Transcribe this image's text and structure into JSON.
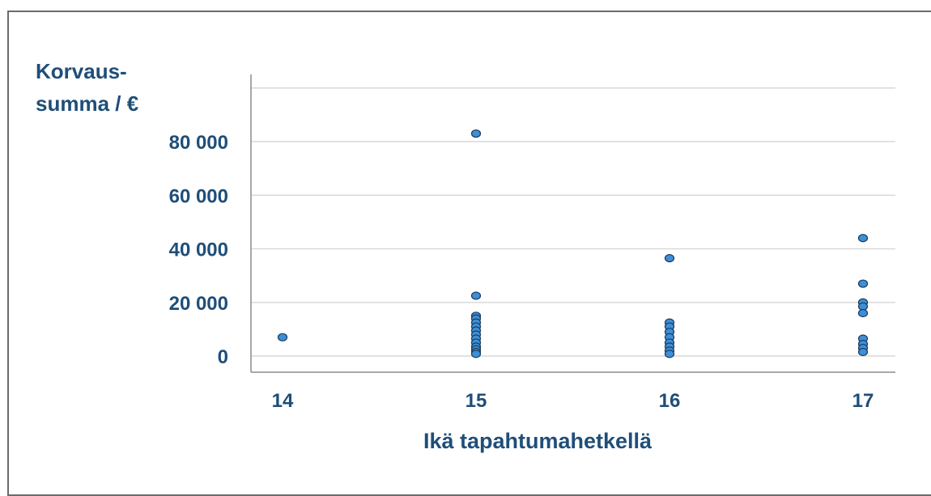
{
  "chart_data": {
    "type": "scatter",
    "title": "",
    "ylabel_lines": [
      "Korvaus-",
      "summa / €"
    ],
    "xlabel": "Ikä tapahtumahetkellä",
    "x_categories": [
      "14",
      "15",
      "16",
      "17"
    ],
    "ylim": [
      0,
      100000
    ],
    "yticks": [
      0,
      20000,
      40000,
      60000,
      80000
    ],
    "ytick_labels": [
      "0",
      "20 000",
      "40 000",
      "60 000",
      "80 000"
    ],
    "grid": true,
    "points": [
      {
        "x": 14,
        "y": 7000
      },
      {
        "x": 15,
        "y": 83000
      },
      {
        "x": 15,
        "y": 22500
      },
      {
        "x": 15,
        "y": 15000
      },
      {
        "x": 15,
        "y": 14000
      },
      {
        "x": 15,
        "y": 12500
      },
      {
        "x": 15,
        "y": 11000
      },
      {
        "x": 15,
        "y": 9500
      },
      {
        "x": 15,
        "y": 8000
      },
      {
        "x": 15,
        "y": 6500
      },
      {
        "x": 15,
        "y": 5000
      },
      {
        "x": 15,
        "y": 3500
      },
      {
        "x": 15,
        "y": 2500
      },
      {
        "x": 15,
        "y": 1500
      },
      {
        "x": 15,
        "y": 800
      },
      {
        "x": 16,
        "y": 36500
      },
      {
        "x": 16,
        "y": 12500
      },
      {
        "x": 16,
        "y": 11000
      },
      {
        "x": 16,
        "y": 9000
      },
      {
        "x": 16,
        "y": 7000
      },
      {
        "x": 16,
        "y": 5000
      },
      {
        "x": 16,
        "y": 3500
      },
      {
        "x": 16,
        "y": 2000
      },
      {
        "x": 16,
        "y": 800
      },
      {
        "x": 17,
        "y": 44000
      },
      {
        "x": 17,
        "y": 27000
      },
      {
        "x": 17,
        "y": 20000
      },
      {
        "x": 17,
        "y": 18500
      },
      {
        "x": 17,
        "y": 16000
      },
      {
        "x": 17,
        "y": 6500
      },
      {
        "x": 17,
        "y": 4500
      },
      {
        "x": 17,
        "y": 3000
      },
      {
        "x": 17,
        "y": 1500
      }
    ],
    "colors": {
      "marker_fill": "#3d8fd6",
      "marker_stroke": "#1b3a5c",
      "text": "#1f4e79",
      "grid": "#d9d9d9",
      "axis": "#8c8c8c"
    }
  }
}
